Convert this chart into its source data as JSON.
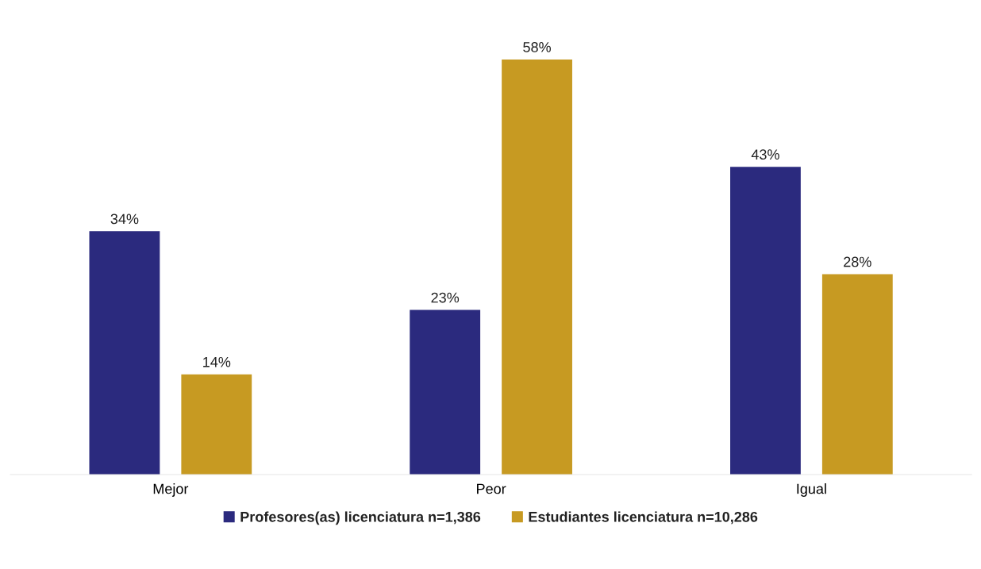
{
  "chart_data": {
    "type": "bar",
    "categories": [
      "Mejor",
      "Peor",
      "Igual"
    ],
    "series": [
      {
        "name": "Profesores(as) licenciatura n=1,386",
        "color": "#2b2a7e",
        "values": [
          34,
          23,
          43
        ],
        "value_labels": [
          "34%",
          "23%",
          "43%"
        ]
      },
      {
        "name": "Estudiantes licenciatura n=10,286",
        "color": "#c79a22",
        "values": [
          14,
          58,
          28
        ],
        "value_labels": [
          "14%",
          "58%",
          "28%"
        ]
      }
    ],
    "legend": "bottom",
    "grid": false
  }
}
